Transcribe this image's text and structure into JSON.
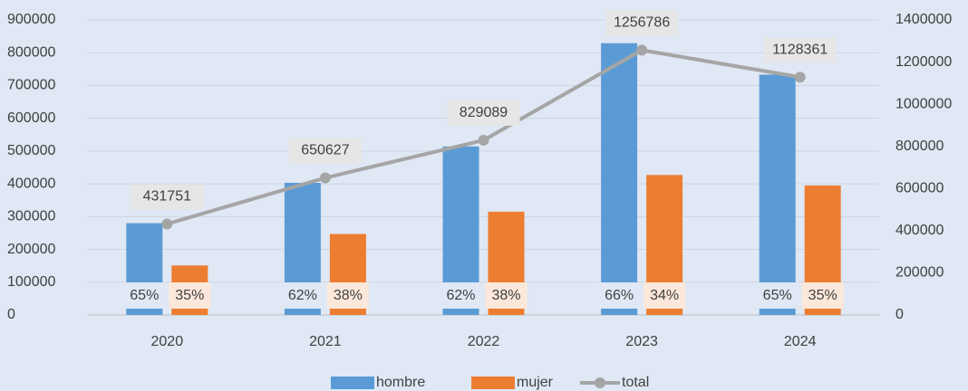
{
  "chart_data": {
    "type": "bar-line",
    "categories": [
      "2020",
      "2021",
      "2022",
      "2023",
      "2024"
    ],
    "series": [
      {
        "name": "hombre",
        "color": "#5b9bd5",
        "values": [
          280000,
          403000,
          514000,
          829000,
          733000
        ],
        "share_labels": [
          "65%",
          "62%",
          "62%",
          "66%",
          "65%"
        ]
      },
      {
        "name": "mujer",
        "color": "#ed7d31",
        "values": [
          151000,
          247000,
          315000,
          427000,
          395000
        ],
        "share_labels": [
          "35%",
          "38%",
          "38%",
          "34%",
          "35%"
        ]
      },
      {
        "name": "total",
        "color": "#a5a5a5",
        "type": "line",
        "axis": "y2",
        "values": [
          431751,
          650627,
          829089,
          1256786,
          1128361
        ]
      }
    ],
    "ylim": [
      0,
      900000
    ],
    "yticks": [
      0,
      100000,
      200000,
      300000,
      400000,
      500000,
      600000,
      700000,
      800000,
      900000
    ],
    "y2lim": [
      0,
      1400000
    ],
    "y2ticks": [
      0,
      200000,
      400000,
      600000,
      800000,
      1000000,
      1200000,
      1400000
    ],
    "grid": true,
    "legend": "bottom"
  }
}
